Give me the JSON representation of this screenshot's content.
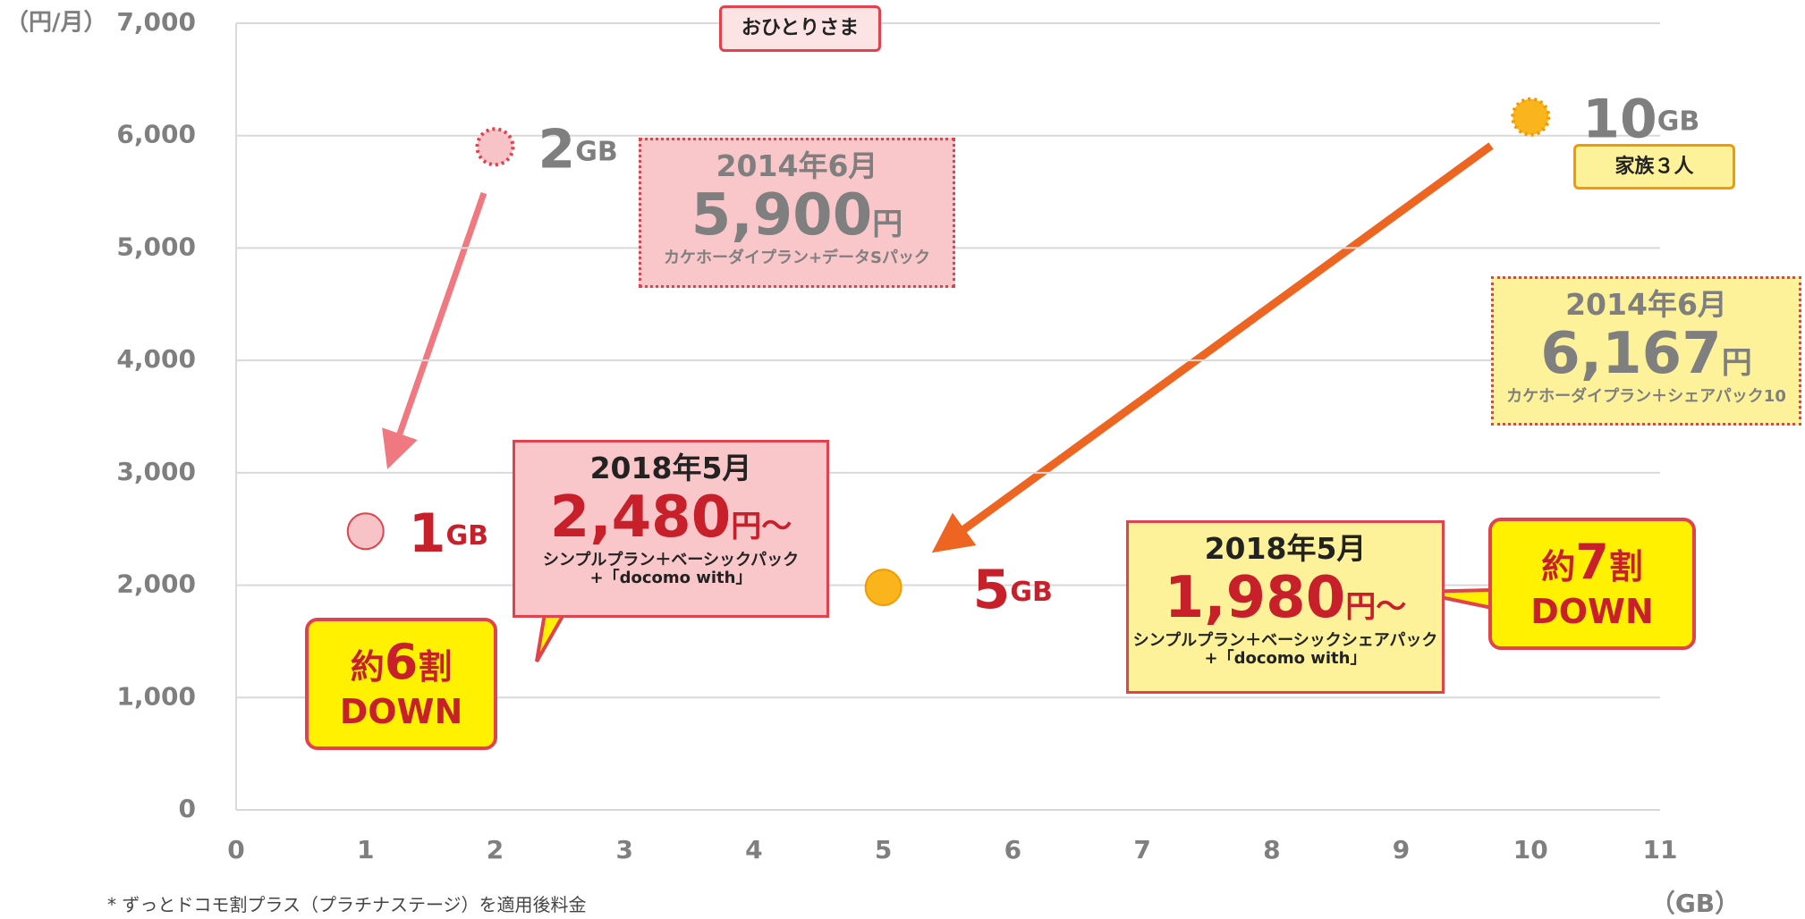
{
  "chart_data": {
    "type": "scatter",
    "x": [
      1,
      2,
      5,
      10
    ],
    "values": [
      2480,
      5900,
      1980,
      6167
    ],
    "value_labels": [
      "2,480",
      "5,900",
      "1,980",
      "6,167"
    ],
    "colors": [
      "#f8c3c7",
      "#f8c3c7",
      "#fbb51c",
      "#fbb51c"
    ],
    "dashed": [
      false,
      true,
      false,
      true
    ],
    "point_labels": [
      {
        "num": "1",
        "unit": "GB"
      },
      {
        "num": "2",
        "unit": "GB"
      },
      {
        "num": "5",
        "unit": "GB"
      },
      {
        "num": "10",
        "unit": "GB"
      }
    ],
    "annotations": [
      {
        "date": "2018年5月",
        "suffix": "円～",
        "plan": "シンプルプラン＋ベーシックパック",
        "plan2": "+「docomo with」"
      },
      {
        "date": "2014年6月",
        "suffix": "円",
        "plan": "カケホーダイプラン+データSパック"
      },
      {
        "date": "2018年5月",
        "suffix": "円～",
        "plan": "シンプルプラン＋ベーシックシェアパック",
        "plan2": "+「docomo with」"
      },
      {
        "date": "2014年6月",
        "suffix": "円",
        "plan": "カケホーダイプラン＋シェアパック10"
      }
    ],
    "tags": [
      "おひとりさま",
      "家族３人"
    ],
    "callouts": [
      {
        "pre": "約",
        "num": "6",
        "post": "割",
        "line2": "DOWN"
      },
      {
        "pre": "約",
        "num": "7",
        "post": "割",
        "line2": "DOWN"
      }
    ],
    "y_label": "（円/月）",
    "x_label": "（GB）",
    "footnote": "* ずっとドコモ割プラス（プラチナステージ）を適用後料金",
    "xlim": [
      0,
      11
    ],
    "xticks": [
      0,
      1,
      2,
      3,
      4,
      5,
      6,
      7,
      8,
      9,
      10,
      11
    ],
    "ylim": [
      0,
      7000
    ],
    "yticks": [
      0,
      {
        "value": 1000,
        "label": "1,000"
      },
      {
        "value": 2000,
        "label": "2,000"
      },
      {
        "value": 3000,
        "label": "3,000"
      },
      {
        "value": 4000,
        "label": "4,000"
      },
      {
        "value": 5000,
        "label": "5,000"
      },
      {
        "value": 6000,
        "label": "6,000"
      },
      {
        "value": 7000,
        "label": "7,000"
      }
    ],
    "grid": true
  }
}
